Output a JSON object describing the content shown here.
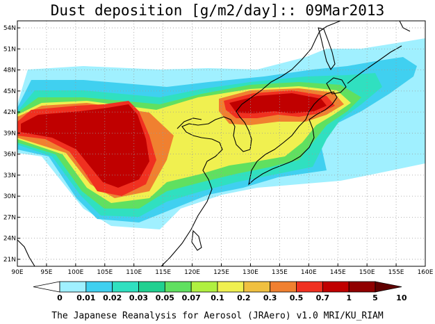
{
  "title": "Dust deposition [g/m2/day]:: 09Mar2013",
  "footer": "The Japanese Reanalysis for Aerosol (JRAero) v1.0 MRI/KU_RIAM",
  "map": {
    "lon_min": 90,
    "lon_max": 160,
    "lat_min": 20,
    "lat_max": 55,
    "lon_ticks": [
      "90E",
      "95E",
      "100E",
      "105E",
      "110E",
      "115E",
      "120E",
      "125E",
      "130E",
      "135E",
      "140E",
      "145E",
      "150E",
      "155E",
      "160E"
    ],
    "lat_ticks": [
      "21N",
      "24N",
      "27N",
      "30N",
      "33N",
      "36N",
      "39N",
      "42N",
      "45N",
      "48N",
      "51N",
      "54N"
    ],
    "lat_tick_values": [
      21,
      24,
      27,
      30,
      33,
      36,
      39,
      42,
      45,
      48,
      51,
      54
    ]
  },
  "colorbar": {
    "labels": [
      "0",
      "0.01",
      "0.02",
      "0.03",
      "0.05",
      "0.07",
      "0.1",
      "0.2",
      "0.3",
      "0.5",
      "0.7",
      "1",
      "5",
      "10"
    ],
    "colors": [
      "#ffffff",
      "#a0f0ff",
      "#40d0f0",
      "#30e0c0",
      "#20d090",
      "#60e060",
      "#b0f040",
      "#f0f050",
      "#f0c040",
      "#f08030",
      "#f03020",
      "#c00000",
      "#900000",
      "#600000"
    ]
  },
  "plumes": [
    {
      "cx": 106.5,
      "cy": 36.8,
      "rx": 6.5,
      "ry": 5.5,
      "level": 11
    },
    {
      "cx": 96.5,
      "cy": 40.2,
      "rx": 7.0,
      "ry": 2.0,
      "level": 11
    },
    {
      "cx": 132.5,
      "cy": 42.8,
      "rx": 7.5,
      "ry": 2.0,
      "level": 11
    },
    {
      "cx": 124.0,
      "cy": 40.5,
      "rx": 35.0,
      "ry": 6.0,
      "level": 2
    },
    {
      "cx": 140.0,
      "cy": 37.0,
      "rx": 13.0,
      "ry": 4.5,
      "level": 3
    }
  ]
}
